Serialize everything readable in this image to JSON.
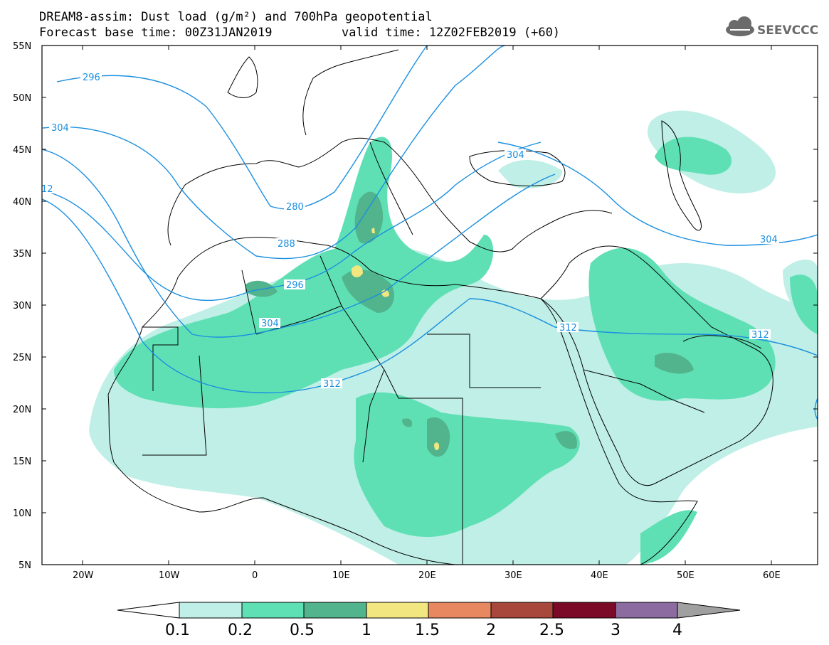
{
  "header": {
    "title_line1": "DREAM8-assim: Dust load (g/m²) and 700hPa geopotential",
    "title_line2_left": "Forecast base time: 00Z31JAN2019",
    "title_line2_right": "valid time: 12Z02FEB2019 (+60)",
    "logo_text": "SEEVCCC",
    "logo_icon": "cloud-icon"
  },
  "map": {
    "lon_range": [
      -25,
      65
    ],
    "lat_range": [
      5,
      55
    ],
    "lat_labels": [
      "55N",
      "50N",
      "45N",
      "40N",
      "35N",
      "30N",
      "25N",
      "20N",
      "15N",
      "10N",
      "5N"
    ],
    "lon_labels": [
      "20W",
      "10W",
      "0",
      "10E",
      "20E",
      "30E",
      "40E",
      "50E",
      "60E"
    ],
    "contour_color": "#1a8fe0",
    "contour_labels": [
      {
        "text": "296",
        "lon": -19,
        "lat": 52
      },
      {
        "text": "304",
        "lon": -23,
        "lat": 47
      },
      {
        "text": "12",
        "lon": -25,
        "lat": 41
      },
      {
        "text": "280",
        "lon": 4.5,
        "lat": 39.5
      },
      {
        "text": "288",
        "lon": 3.5,
        "lat": 35
      },
      {
        "text": "296",
        "lon": 5,
        "lat": 30
      },
      {
        "text": "304",
        "lon": 1.5,
        "lat": 27
      },
      {
        "text": "312",
        "lon": 9,
        "lat": 22.5
      },
      {
        "text": "304",
        "lon": 31,
        "lat": 45
      },
      {
        "text": "304",
        "lon": 60,
        "lat": 35.5
      },
      {
        "text": "312",
        "lon": 34,
        "lat": 26.5
      },
      {
        "text": "312",
        "lon": 57,
        "lat": 26
      }
    ]
  },
  "colorbar": {
    "labels": [
      "0.1",
      "0.2",
      "0.5",
      "1",
      "1.5",
      "2",
      "2.5",
      "3",
      "4"
    ],
    "colors": [
      "#ffffff",
      "#bfefe6",
      "#5fe0b4",
      "#52b48c",
      "#f2e680",
      "#e88860",
      "#a8483c",
      "#7a0a28",
      "#8c6ca0",
      "#a0a0a0"
    ]
  },
  "colors": {
    "dust_01_02": "#bfefe6",
    "dust_02_05": "#5fe0b4",
    "dust_05_1": "#52b48c",
    "dust_1_15": "#f2e680"
  }
}
